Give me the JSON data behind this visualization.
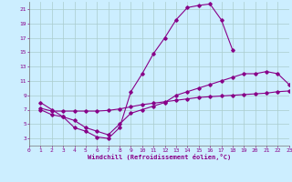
{
  "xlabel": "Windchill (Refroidissement éolien,°C)",
  "bg_color": "#cceeff",
  "line_color": "#880088",
  "grid_color": "#aacccc",
  "xlim": [
    0,
    23
  ],
  "ylim": [
    2,
    22
  ],
  "xticks": [
    0,
    1,
    2,
    3,
    4,
    5,
    6,
    7,
    8,
    9,
    10,
    11,
    12,
    13,
    14,
    15,
    16,
    17,
    18,
    19,
    20,
    21,
    22,
    23
  ],
  "yticks": [
    3,
    5,
    7,
    9,
    11,
    13,
    15,
    17,
    19,
    21
  ],
  "curves": [
    {
      "x": [
        1,
        2,
        3,
        4,
        5,
        6,
        7,
        8,
        9,
        10,
        11,
        12,
        13,
        14,
        15,
        16,
        17,
        18
      ],
      "y": [
        8,
        7,
        6,
        4.5,
        4,
        3.2,
        3,
        4.5,
        9.5,
        12,
        14.8,
        17,
        19.5,
        21.2,
        21.5,
        21.7,
        19.5,
        15.3
      ]
    },
    {
      "x": [
        1,
        2,
        3,
        4,
        5,
        6,
        7,
        8,
        9,
        10,
        11,
        12,
        13,
        14,
        15,
        16,
        17,
        18,
        19,
        20,
        21,
        22,
        23
      ],
      "y": [
        7,
        6.3,
        6,
        5.5,
        4.5,
        4,
        3.5,
        5,
        6.5,
        7,
        7.5,
        8,
        9,
        9.5,
        10,
        10.5,
        11,
        11.5,
        12,
        12,
        12.3,
        12,
        10.5
      ]
    },
    {
      "x": [
        1,
        2,
        3,
        4,
        5,
        6,
        7,
        8,
        9,
        10,
        11,
        12,
        13,
        14,
        15,
        16,
        17,
        18,
        19,
        20,
        21,
        22,
        23
      ],
      "y": [
        7.2,
        6.8,
        6.8,
        6.8,
        6.8,
        6.8,
        6.9,
        7.1,
        7.4,
        7.7,
        7.9,
        8.1,
        8.3,
        8.5,
        8.7,
        8.8,
        8.9,
        9.0,
        9.1,
        9.2,
        9.3,
        9.5,
        9.6
      ]
    }
  ]
}
